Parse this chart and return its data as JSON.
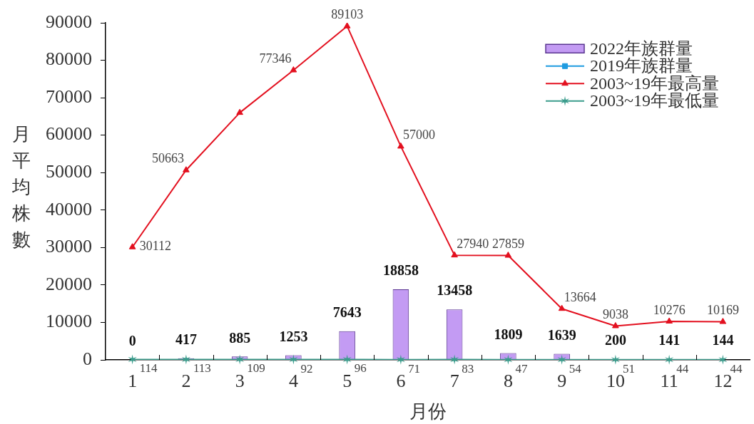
{
  "chart_data": {
    "type": "line",
    "categories": [
      "1",
      "2",
      "3",
      "4",
      "5",
      "6",
      "7",
      "8",
      "9",
      "10",
      "11",
      "12"
    ],
    "xlabel": "月份",
    "ylabel": "月平均株數",
    "ylim": [
      0,
      90000
    ],
    "yticks": [
      0,
      10000,
      20000,
      30000,
      40000,
      50000,
      60000,
      70000,
      80000,
      90000
    ],
    "legend": "top right",
    "series": [
      {
        "name": "2022年族群量",
        "type": "bar",
        "color": "#c39bf3",
        "values": [
          0,
          417,
          885,
          1253,
          7643,
          18858,
          13458,
          1809,
          1639,
          200,
          141,
          144
        ],
        "value_labels": [
          "0",
          "417",
          "885",
          "1253",
          "7643",
          "18858",
          "13458",
          "1809",
          "1639",
          "200",
          "141",
          "144"
        ]
      },
      {
        "name": "2019年族群量",
        "color": "#1e9be0",
        "marker": "square",
        "values": [
          null,
          null,
          null,
          null,
          null,
          null,
          null,
          null,
          null,
          null,
          null,
          null
        ]
      },
      {
        "name": "2003~19年最高量",
        "color": "#e3101f",
        "marker": "triangle",
        "values": [
          30112,
          50663,
          66000,
          77346,
          89103,
          57000,
          27940,
          27859,
          13664,
          9038,
          10276,
          10169
        ],
        "value_labels": [
          "30112",
          "50663",
          null,
          "77346",
          "89103",
          "57000",
          "27940",
          "27859",
          "13664",
          "9038",
          "10276",
          "10169"
        ]
      },
      {
        "name": "2003~19年最低量",
        "color": "#3a9c8c",
        "marker": "cross",
        "values": [
          114,
          113,
          109,
          92,
          96,
          71,
          83,
          47,
          54,
          51,
          44,
          44
        ],
        "value_labels": [
          "114",
          "113",
          "109",
          "92",
          "96",
          "71",
          "83",
          "47",
          "54",
          "51",
          "44",
          "44"
        ]
      }
    ]
  }
}
